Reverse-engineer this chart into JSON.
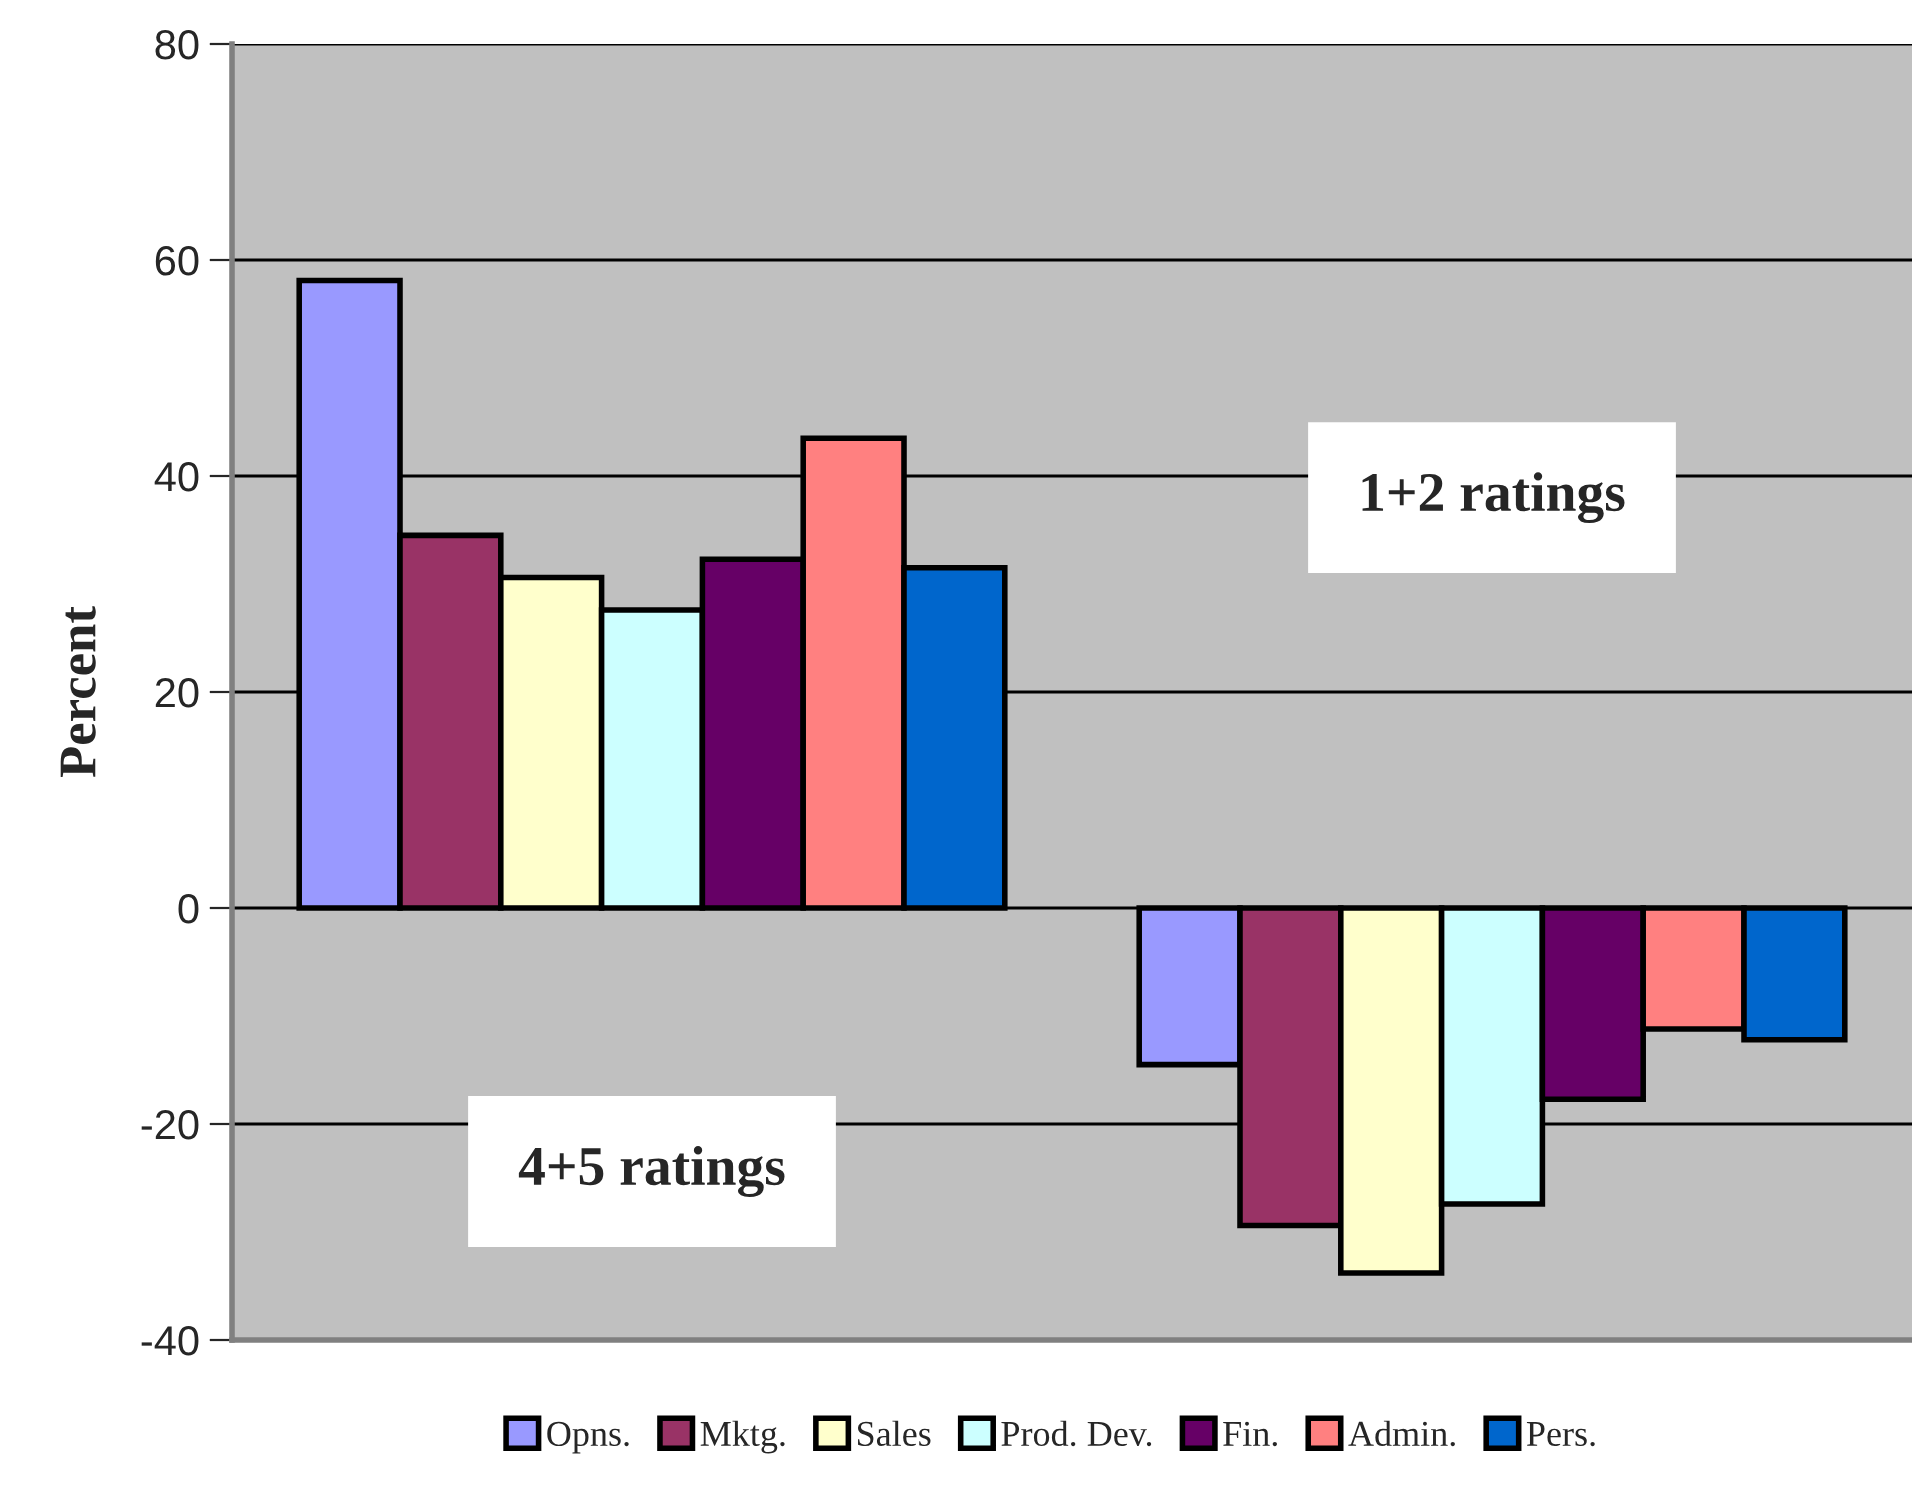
{
  "chart_data": {
    "type": "bar",
    "ylabel": "Percent",
    "categories": [
      null,
      null
    ],
    "series": [
      {
        "name": "Opns.",
        "color": "#9999ff",
        "values": [
          58.1,
          -14.5
        ]
      },
      {
        "name": "Mktg.",
        "color": "#993366",
        "values": [
          34.5,
          -29.4
        ]
      },
      {
        "name": "Sales",
        "color": "#ffffcc",
        "values": [
          30.6,
          -33.8
        ]
      },
      {
        "name": "Prod. Dev.",
        "color": "#ccffff",
        "values": [
          27.6,
          -27.4
        ]
      },
      {
        "name": "Fin.",
        "color": "#660066",
        "values": [
          32.3,
          -17.7
        ]
      },
      {
        "name": "Admin.",
        "color": "#ff8080",
        "values": [
          43.5,
          -11.2
        ]
      },
      {
        "name": "Pers.",
        "color": "#0066cc",
        "values": [
          31.5,
          -12.2
        ]
      }
    ],
    "annotations": [
      "4+5 ratings",
      "1+2 ratings"
    ],
    "ylim": [
      -40,
      80
    ],
    "yticks": [
      -40,
      -20,
      0,
      20,
      40,
      60,
      80
    ],
    "grid": "y",
    "legend": "bottom"
  }
}
